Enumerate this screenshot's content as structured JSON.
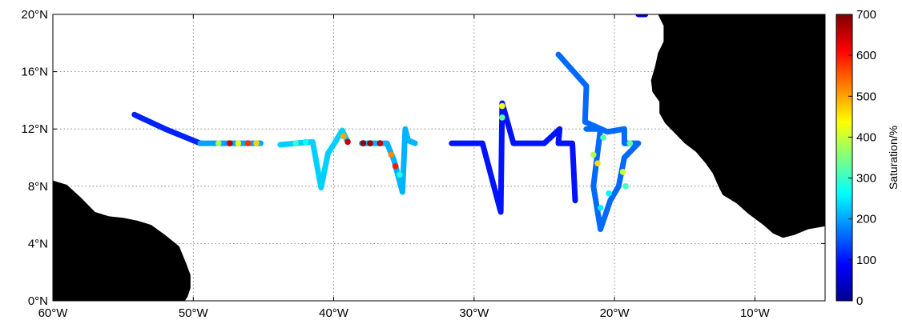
{
  "map": {
    "extent": {
      "lon_min": -60,
      "lon_max": -5,
      "lat_min": 0,
      "lat_max": 20
    },
    "lat_ticks": [
      {
        "value": 0,
        "label": "0°N"
      },
      {
        "value": 4,
        "label": "4°N"
      },
      {
        "value": 8,
        "label": "8°N"
      },
      {
        "value": 12,
        "label": "12°N"
      },
      {
        "value": 16,
        "label": "16°N"
      },
      {
        "value": 20,
        "label": "20°N"
      }
    ],
    "lon_ticks": [
      {
        "value": -60,
        "label": "60°W"
      },
      {
        "value": -50,
        "label": "50°W"
      },
      {
        "value": -40,
        "label": "40°W"
      },
      {
        "value": -30,
        "label": "30°W"
      },
      {
        "value": -20,
        "label": "20°W"
      },
      {
        "value": -10,
        "label": "10°W"
      }
    ],
    "grid": true,
    "land_color": "#000000",
    "track_color_scale": "jet",
    "colorbar": {
      "title": "Saturation/%",
      "min": 0,
      "max": 700,
      "ticks": [
        "0",
        "100",
        "200",
        "300",
        "400",
        "500",
        "600",
        "700"
      ]
    },
    "land": [
      {
        "name": "south-america-land",
        "coords": [
          [
            -60,
            8.4
          ],
          [
            -59,
            8.1
          ],
          [
            -58,
            7.2
          ],
          [
            -57,
            6.2
          ],
          [
            -56,
            5.9
          ],
          [
            -55,
            5.8
          ],
          [
            -54,
            5.6
          ],
          [
            -53,
            5.3
          ],
          [
            -52,
            4.6
          ],
          [
            -51,
            3.8
          ],
          [
            -50.5,
            2.6
          ],
          [
            -50.2,
            1.8
          ],
          [
            -50.2,
            0.9
          ],
          [
            -50.4,
            0.3
          ],
          [
            -50.6,
            0
          ],
          [
            -60,
            0
          ]
        ]
      },
      {
        "name": "africa-land",
        "coords": [
          [
            -16.9,
            20
          ],
          [
            -16.5,
            19.2
          ],
          [
            -16.5,
            18.1
          ],
          [
            -16.9,
            17.3
          ],
          [
            -17.1,
            16.4
          ],
          [
            -17.4,
            15.4
          ],
          [
            -17.3,
            14.6
          ],
          [
            -16.8,
            13.9
          ],
          [
            -16.8,
            13.1
          ],
          [
            -16.4,
            12.4
          ],
          [
            -15.8,
            11.8
          ],
          [
            -15.0,
            11.0
          ],
          [
            -14.2,
            10.4
          ],
          [
            -13.5,
            9.6
          ],
          [
            -13.0,
            8.9
          ],
          [
            -12.6,
            8.0
          ],
          [
            -12.3,
            7.4
          ],
          [
            -11.3,
            6.8
          ],
          [
            -10.5,
            6.1
          ],
          [
            -9.4,
            5.3
          ],
          [
            -8.7,
            4.7
          ],
          [
            -8.0,
            4.4
          ],
          [
            -7.2,
            4.6
          ],
          [
            -6.2,
            5.0
          ],
          [
            -5,
            5.2
          ],
          [
            -5,
            20
          ]
        ]
      }
    ],
    "tracks": [
      {
        "name": "track-1",
        "segments": [
          {
            "path": [
              [
                -54.2,
                13.0
              ],
              [
                -52,
                12.0
              ],
              [
                -49.5,
                11.0
              ]
            ],
            "value": 110
          },
          {
            "path": [
              [
                -49.5,
                11.0
              ],
              [
                -45.2,
                11.0
              ]
            ],
            "value": 200
          }
        ]
      },
      {
        "name": "track-2",
        "segments": [
          {
            "path": [
              [
                -43.8,
                10.9
              ],
              [
                -41.5,
                11.1
              ],
              [
                -40.9,
                7.9
              ],
              [
                -40.4,
                10.3
              ],
              [
                -40.0,
                10.9
              ],
              [
                -39.4,
                11.9
              ],
              [
                -39.0,
                11.1
              ]
            ],
            "value": 230
          }
        ]
      },
      {
        "name": "track-3",
        "segments": [
          {
            "path": [
              [
                -38.0,
                11.0
              ],
              [
                -36.2,
                11.0
              ],
              [
                -35.7,
                9.8
              ],
              [
                -35.1,
                7.6
              ],
              [
                -34.9,
                12.0
              ],
              [
                -34.7,
                11.2
              ],
              [
                -34.2,
                11.0
              ]
            ],
            "value": 210
          }
        ]
      },
      {
        "name": "track-4",
        "segments": [
          {
            "path": [
              [
                -31.6,
                11.0
              ],
              [
                -29.4,
                11.0
              ],
              [
                -28.1,
                6.2
              ],
              [
                -28.0,
                13.8
              ],
              [
                -27.2,
                11.0
              ],
              [
                -25.0,
                11.0
              ],
              [
                -23.9,
                12.0
              ],
              [
                -24.0,
                11.0
              ],
              [
                -23.0,
                11.0
              ],
              [
                -22.8,
                7.0
              ]
            ],
            "value": 100
          }
        ]
      },
      {
        "name": "track-5",
        "segments": [
          {
            "path": [
              [
                -24.0,
                17.2
              ],
              [
                -22.0,
                15.0
              ],
              [
                -22.1,
                12.5
              ],
              [
                -20.5,
                11.8
              ],
              [
                -19.3,
                12.0
              ],
              [
                -19.3,
                11.0
              ],
              [
                -18.3,
                11.0
              ],
              [
                -19.3,
                10.0
              ],
              [
                -19.7,
                8.0
              ],
              [
                -20.3,
                7.0
              ],
              [
                -21.0,
                5.0
              ],
              [
                -21.5,
                8.0
              ],
              [
                -21.0,
                12.0
              ],
              [
                -22.0,
                12.0
              ]
            ],
            "value": 160
          }
        ]
      },
      {
        "name": "track-6",
        "segments": [
          {
            "path": [
              [
                -18.3,
                20.0
              ],
              [
                -17.8,
                20.0
              ]
            ],
            "value": 60
          }
        ]
      }
    ],
    "points": [
      {
        "lon": -48.2,
        "lat": 11.0,
        "value": 380
      },
      {
        "lon": -47.4,
        "lat": 11.0,
        "value": 650
      },
      {
        "lon": -46.8,
        "lat": 11.0,
        "value": 420
      },
      {
        "lon": -46.1,
        "lat": 11.0,
        "value": 580
      },
      {
        "lon": -45.5,
        "lat": 11.0,
        "value": 470
      },
      {
        "lon": -42.7,
        "lat": 11.0,
        "value": 300
      },
      {
        "lon": -42.0,
        "lat": 11.1,
        "value": 270
      },
      {
        "lon": -39.3,
        "lat": 11.5,
        "value": 500
      },
      {
        "lon": -39.0,
        "lat": 11.1,
        "value": 650
      },
      {
        "lon": -37.9,
        "lat": 11.0,
        "value": 690
      },
      {
        "lon": -37.4,
        "lat": 11.0,
        "value": 680
      },
      {
        "lon": -36.7,
        "lat": 11.0,
        "value": 650
      },
      {
        "lon": -35.9,
        "lat": 10.2,
        "value": 520
      },
      {
        "lon": -35.6,
        "lat": 9.4,
        "value": 600
      },
      {
        "lon": -35.3,
        "lat": 8.8,
        "value": 280
      },
      {
        "lon": -28.0,
        "lat": 13.6,
        "value": 430
      },
      {
        "lon": -28.0,
        "lat": 12.8,
        "value": 330
      },
      {
        "lon": -20.8,
        "lat": 11.4,
        "value": 320
      },
      {
        "lon": -21.5,
        "lat": 10.2,
        "value": 380
      },
      {
        "lon": -21.2,
        "lat": 9.6,
        "value": 460
      },
      {
        "lon": -19.4,
        "lat": 9.0,
        "value": 400
      },
      {
        "lon": -19.2,
        "lat": 8.0,
        "value": 310
      },
      {
        "lon": -20.4,
        "lat": 7.5,
        "value": 260
      },
      {
        "lon": -21.0,
        "lat": 6.5,
        "value": 250
      },
      {
        "lon": -18.9,
        "lat": 11.0,
        "value": 330
      }
    ]
  }
}
